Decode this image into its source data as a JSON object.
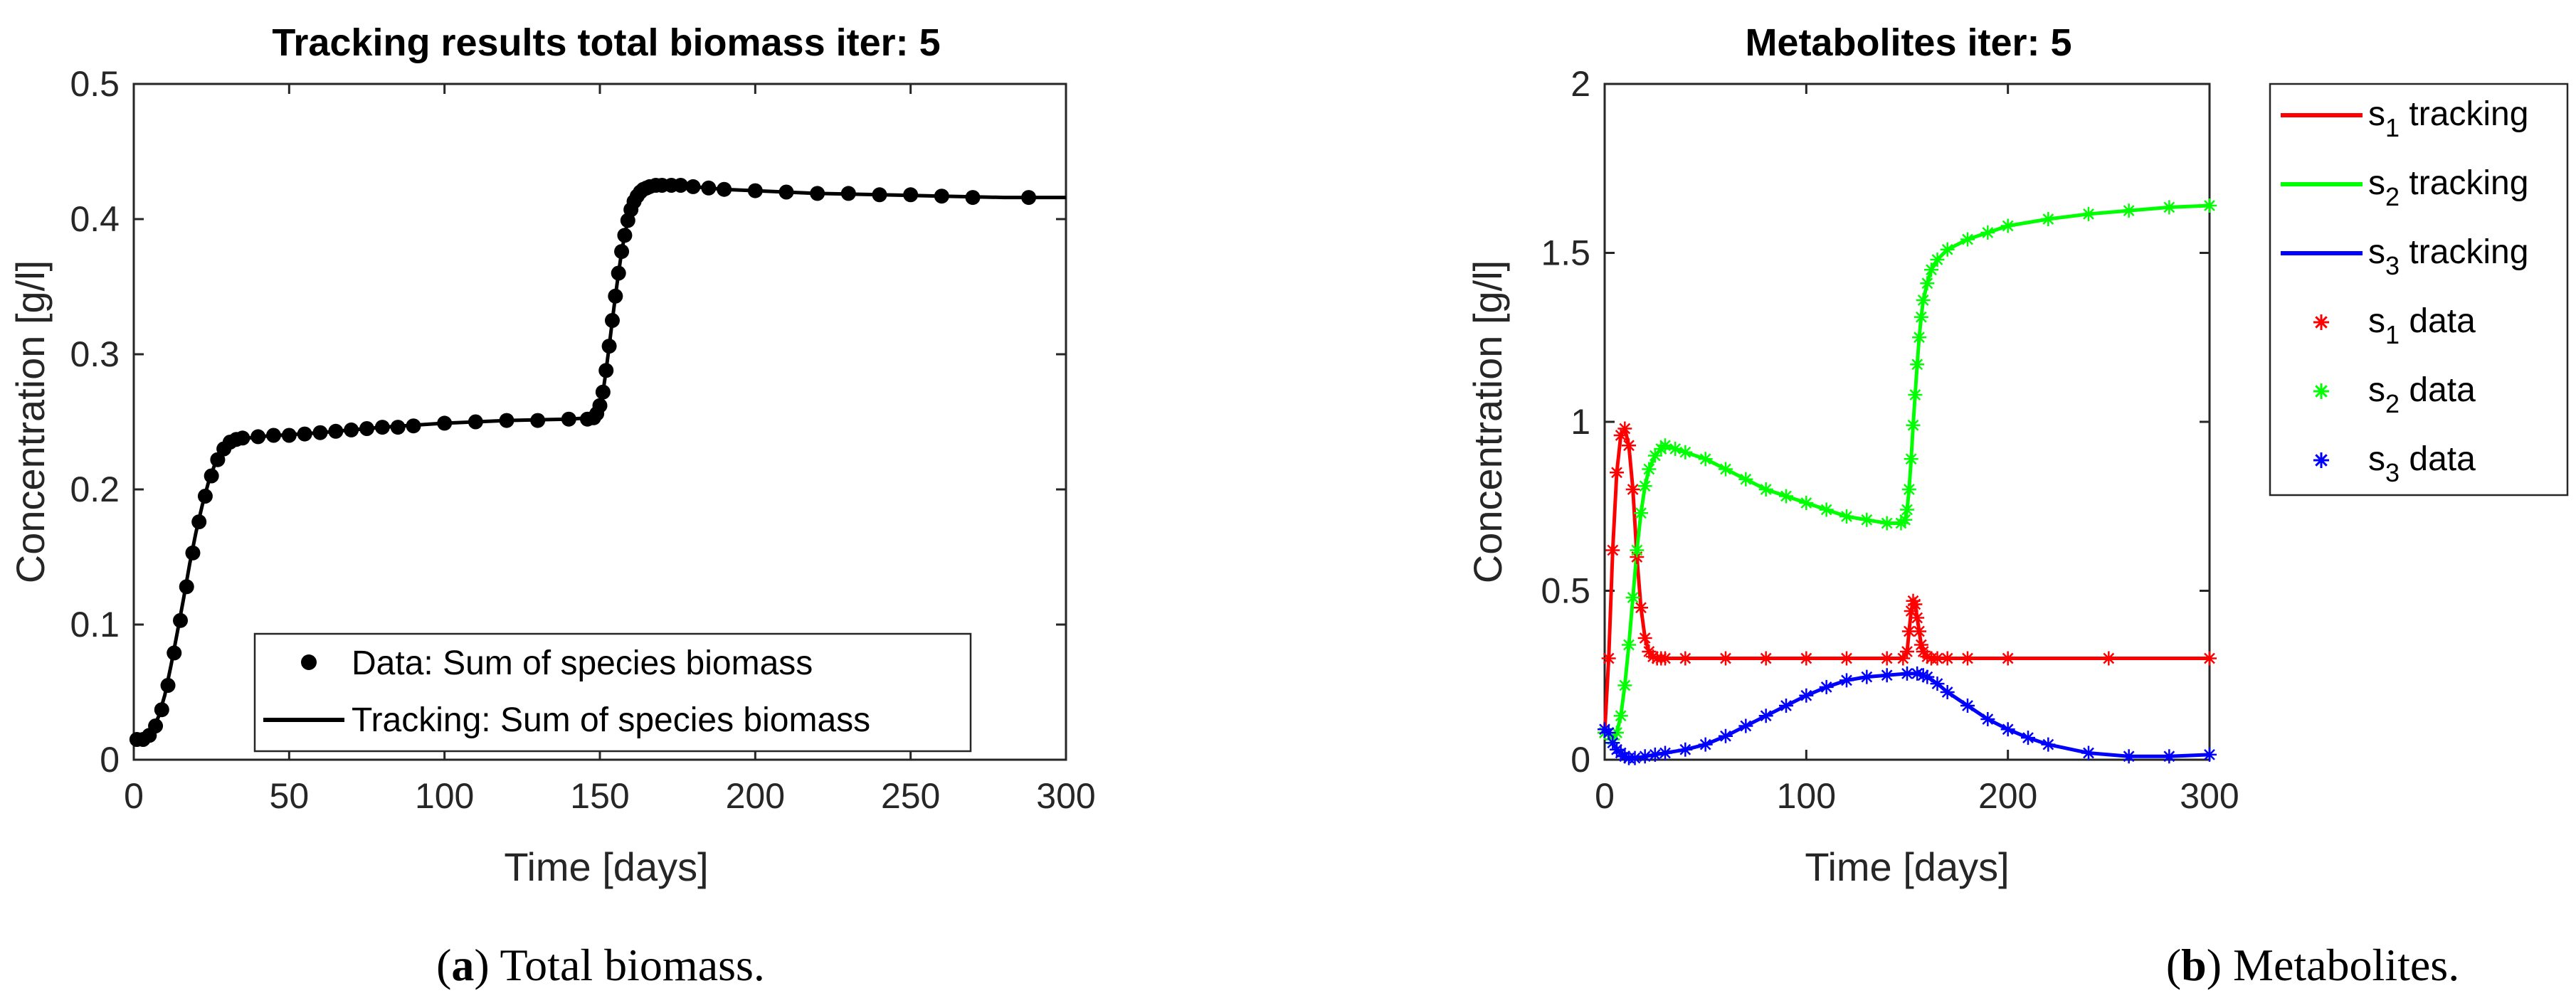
{
  "chart_data": [
    {
      "type": "scatter",
      "title": "Tracking results total biomass iter: 5",
      "xlabel": "Time [days]",
      "ylabel": "Concentration [g/l]",
      "xlim": [
        0,
        300
      ],
      "ylim": [
        0,
        0.5
      ],
      "xticks": [
        "0",
        "50",
        "100",
        "150",
        "200",
        "250",
        "300"
      ],
      "yticks": [
        "0",
        "0.1",
        "0.2",
        "0.3",
        "0.4",
        "0.5"
      ],
      "grid": false,
      "legend_position": "bottom-right",
      "caption_letter": "a",
      "caption_text": ") Total biomass.",
      "series": [
        {
          "name": "Data: Sum of species biomass",
          "style": "markers",
          "color": "#000000",
          "x": [
            1,
            3,
            5,
            7,
            9,
            11,
            13,
            15,
            17,
            19,
            21,
            23,
            25,
            27,
            29,
            31,
            33,
            35,
            40,
            45,
            50,
            55,
            60,
            65,
            70,
            75,
            80,
            85,
            90,
            100,
            110,
            120,
            130,
            140,
            146,
            148,
            149,
            150,
            151,
            152,
            153,
            154,
            155,
            156,
            157,
            158,
            159,
            160,
            161,
            162,
            163,
            164,
            165,
            166,
            168,
            170,
            173,
            176,
            180,
            185,
            190,
            200,
            210,
            220,
            230,
            240,
            250,
            260,
            270,
            288
          ],
          "y": [
            0.015,
            0.015,
            0.018,
            0.025,
            0.037,
            0.055,
            0.079,
            0.103,
            0.128,
            0.153,
            0.176,
            0.195,
            0.21,
            0.222,
            0.23,
            0.235,
            0.237,
            0.238,
            0.239,
            0.24,
            0.24,
            0.241,
            0.242,
            0.243,
            0.244,
            0.245,
            0.246,
            0.246,
            0.247,
            0.249,
            0.25,
            0.251,
            0.251,
            0.252,
            0.252,
            0.253,
            0.256,
            0.262,
            0.272,
            0.288,
            0.306,
            0.325,
            0.343,
            0.36,
            0.376,
            0.388,
            0.399,
            0.407,
            0.413,
            0.417,
            0.42,
            0.422,
            0.423,
            0.424,
            0.425,
            0.425,
            0.425,
            0.425,
            0.424,
            0.423,
            0.422,
            0.421,
            0.42,
            0.419,
            0.419,
            0.418,
            0.418,
            0.417,
            0.416,
            0.416
          ]
        },
        {
          "name": "Tracking: Sum of species biomass",
          "style": "line",
          "color": "#000000",
          "x": [
            0,
            2,
            4,
            6,
            8,
            10,
            12,
            14,
            16,
            18,
            20,
            22,
            24,
            26,
            28,
            30,
            34,
            40,
            60,
            80,
            100,
            120,
            140,
            147,
            149,
            150,
            151,
            152,
            153,
            154,
            155,
            156,
            157,
            158,
            159,
            160,
            162,
            164,
            166,
            168,
            170,
            175,
            180,
            190,
            200,
            220,
            240,
            260,
            280,
            300
          ],
          "y": [
            0.015,
            0.015,
            0.017,
            0.022,
            0.032,
            0.048,
            0.07,
            0.094,
            0.119,
            0.145,
            0.168,
            0.188,
            0.205,
            0.218,
            0.227,
            0.233,
            0.237,
            0.239,
            0.242,
            0.246,
            0.249,
            0.251,
            0.252,
            0.253,
            0.256,
            0.262,
            0.272,
            0.288,
            0.306,
            0.325,
            0.343,
            0.36,
            0.376,
            0.388,
            0.399,
            0.407,
            0.417,
            0.422,
            0.424,
            0.425,
            0.425,
            0.425,
            0.424,
            0.422,
            0.421,
            0.419,
            0.418,
            0.417,
            0.416,
            0.416
          ]
        }
      ]
    },
    {
      "type": "line",
      "title": "Metabolites iter: 5",
      "xlabel": "Time [days]",
      "ylabel": "Concentration [g/l]",
      "xlim": [
        0,
        300
      ],
      "ylim": [
        0,
        2
      ],
      "xticks": [
        "0",
        "100",
        "200",
        "300"
      ],
      "yticks": [
        "0",
        "0.5",
        "1",
        "1.5",
        "2"
      ],
      "grid": false,
      "legend_position": "outside-right",
      "caption_letter": "b",
      "caption_text": ") Metabolites.",
      "series": [
        {
          "name": "s1 tracking",
          "label_base": "s",
          "label_sub": "1",
          "label_rest": " tracking",
          "style": "line",
          "color": "#ff0000",
          "x": [
            0,
            2,
            4,
            6,
            8,
            10,
            12,
            14,
            16,
            18,
            20,
            22,
            24,
            26,
            28,
            30,
            40,
            60,
            80,
            100,
            120,
            140,
            148,
            150,
            151,
            152,
            153,
            154,
            155,
            156,
            157,
            158,
            160,
            162,
            165,
            170,
            180,
            200,
            250,
            300
          ],
          "y": [
            0.08,
            0.3,
            0.62,
            0.85,
            0.96,
            0.98,
            0.93,
            0.8,
            0.6,
            0.45,
            0.36,
            0.32,
            0.305,
            0.3,
            0.3,
            0.3,
            0.3,
            0.3,
            0.3,
            0.3,
            0.3,
            0.3,
            0.3,
            0.32,
            0.38,
            0.44,
            0.47,
            0.46,
            0.42,
            0.38,
            0.34,
            0.32,
            0.305,
            0.3,
            0.3,
            0.3,
            0.3,
            0.3,
            0.3,
            0.3
          ]
        },
        {
          "name": "s2 tracking",
          "label_base": "s",
          "label_sub": "2",
          "label_rest": " tracking",
          "style": "line",
          "color": "#00ff00",
          "x": [
            0,
            4,
            6,
            8,
            10,
            12,
            14,
            16,
            18,
            20,
            22,
            25,
            28,
            30,
            35,
            40,
            50,
            60,
            70,
            80,
            90,
            100,
            110,
            120,
            130,
            140,
            147,
            149,
            150,
            151,
            152,
            153,
            154,
            155,
            156,
            157,
            158,
            160,
            162,
            165,
            170,
            180,
            190,
            200,
            220,
            240,
            260,
            280,
            300
          ],
          "y": [
            0.08,
            0.06,
            0.08,
            0.13,
            0.22,
            0.34,
            0.48,
            0.62,
            0.73,
            0.81,
            0.86,
            0.9,
            0.92,
            0.93,
            0.92,
            0.91,
            0.89,
            0.86,
            0.83,
            0.8,
            0.78,
            0.76,
            0.74,
            0.72,
            0.71,
            0.7,
            0.7,
            0.71,
            0.74,
            0.8,
            0.89,
            0.99,
            1.08,
            1.17,
            1.25,
            1.31,
            1.36,
            1.41,
            1.45,
            1.48,
            1.51,
            1.54,
            1.56,
            1.58,
            1.6,
            1.615,
            1.625,
            1.635,
            1.64
          ]
        },
        {
          "name": "s3 tracking",
          "label_base": "s",
          "label_sub": "3",
          "label_rest": " tracking",
          "style": "line",
          "color": "#0000ff",
          "x": [
            0,
            2,
            4,
            6,
            8,
            10,
            12,
            15,
            20,
            25,
            30,
            40,
            50,
            60,
            70,
            80,
            90,
            100,
            110,
            120,
            130,
            140,
            150,
            155,
            158,
            160,
            165,
            170,
            180,
            190,
            200,
            210,
            220,
            240,
            260,
            280,
            300
          ],
          "y": [
            0.09,
            0.08,
            0.05,
            0.03,
            0.02,
            0.01,
            0.005,
            0.005,
            0.01,
            0.015,
            0.02,
            0.03,
            0.045,
            0.07,
            0.1,
            0.13,
            0.16,
            0.19,
            0.215,
            0.235,
            0.245,
            0.25,
            0.255,
            0.255,
            0.25,
            0.245,
            0.225,
            0.2,
            0.16,
            0.12,
            0.09,
            0.065,
            0.045,
            0.02,
            0.01,
            0.01,
            0.015
          ]
        },
        {
          "name": "s1 data",
          "label_base": "s",
          "label_sub": "1",
          "label_rest": " data",
          "style": "markers",
          "color": "#ff0000",
          "x": [
            0,
            2,
            4,
            6,
            8,
            10,
            12,
            14,
            16,
            18,
            20,
            22,
            24,
            26,
            28,
            30,
            40,
            60,
            80,
            100,
            120,
            140,
            148,
            150,
            151,
            152,
            153,
            154,
            155,
            156,
            157,
            158,
            160,
            162,
            165,
            170,
            180,
            200,
            250,
            300
          ],
          "y": [
            0.08,
            0.3,
            0.62,
            0.85,
            0.96,
            0.98,
            0.93,
            0.8,
            0.6,
            0.45,
            0.36,
            0.32,
            0.305,
            0.3,
            0.3,
            0.3,
            0.3,
            0.3,
            0.3,
            0.3,
            0.3,
            0.3,
            0.3,
            0.32,
            0.38,
            0.44,
            0.47,
            0.46,
            0.42,
            0.38,
            0.34,
            0.32,
            0.305,
            0.3,
            0.3,
            0.3,
            0.3,
            0.3,
            0.3,
            0.3
          ]
        },
        {
          "name": "s2 data",
          "label_base": "s",
          "label_sub": "2",
          "label_rest": " data",
          "style": "markers",
          "color": "#00ff00",
          "x": [
            0,
            4,
            6,
            8,
            10,
            12,
            14,
            16,
            18,
            20,
            22,
            25,
            28,
            30,
            35,
            40,
            50,
            60,
            70,
            80,
            90,
            100,
            110,
            120,
            130,
            140,
            147,
            149,
            150,
            151,
            152,
            153,
            154,
            155,
            156,
            157,
            158,
            160,
            162,
            165,
            170,
            180,
            190,
            200,
            220,
            240,
            260,
            280,
            300
          ],
          "y": [
            0.08,
            0.06,
            0.08,
            0.13,
            0.22,
            0.34,
            0.48,
            0.62,
            0.73,
            0.81,
            0.86,
            0.9,
            0.92,
            0.93,
            0.92,
            0.91,
            0.89,
            0.86,
            0.83,
            0.8,
            0.78,
            0.76,
            0.74,
            0.72,
            0.71,
            0.7,
            0.7,
            0.71,
            0.74,
            0.8,
            0.89,
            0.99,
            1.08,
            1.17,
            1.25,
            1.31,
            1.36,
            1.41,
            1.45,
            1.48,
            1.51,
            1.54,
            1.56,
            1.58,
            1.6,
            1.615,
            1.625,
            1.635,
            1.64
          ]
        },
        {
          "name": "s3 data",
          "label_base": "s",
          "label_sub": "3",
          "label_rest": " data",
          "style": "markers",
          "color": "#0000ff",
          "x": [
            0,
            2,
            4,
            6,
            8,
            10,
            12,
            15,
            20,
            25,
            30,
            40,
            50,
            60,
            70,
            80,
            90,
            100,
            110,
            120,
            130,
            140,
            150,
            155,
            158,
            160,
            165,
            170,
            180,
            190,
            200,
            210,
            220,
            240,
            260,
            280,
            300
          ],
          "y": [
            0.09,
            0.08,
            0.05,
            0.03,
            0.02,
            0.01,
            0.005,
            0.005,
            0.01,
            0.015,
            0.02,
            0.03,
            0.045,
            0.07,
            0.1,
            0.13,
            0.16,
            0.19,
            0.215,
            0.235,
            0.245,
            0.25,
            0.255,
            0.255,
            0.25,
            0.245,
            0.225,
            0.2,
            0.16,
            0.12,
            0.09,
            0.065,
            0.045,
            0.02,
            0.01,
            0.01,
            0.015
          ]
        }
      ]
    }
  ]
}
